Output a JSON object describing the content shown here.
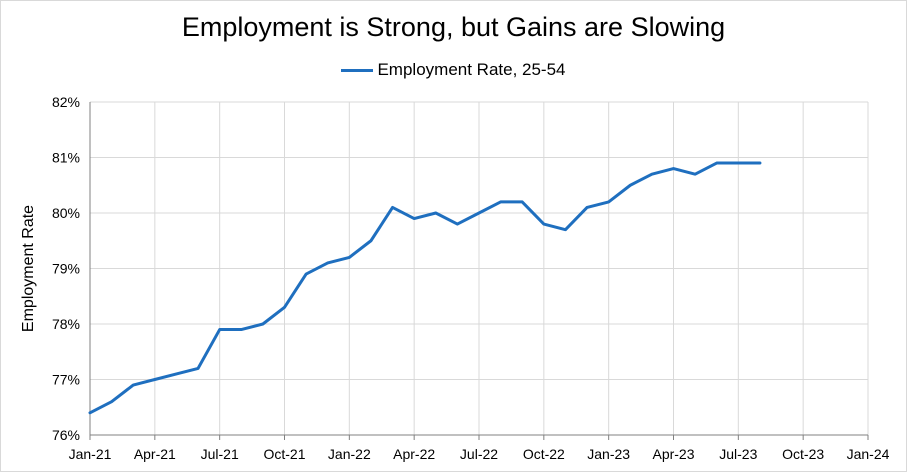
{
  "chart_data": {
    "type": "line",
    "title": "Employment is Strong, but Gains are Slowing",
    "ylabel": "Employment Rate",
    "xlabel": "",
    "legend_position": "top-center",
    "grid": true,
    "ylim": [
      76,
      82
    ],
    "x_tick_labels": [
      "Jan-21",
      "Apr-21",
      "Jul-21",
      "Oct-21",
      "Jan-22",
      "Apr-22",
      "Jul-22",
      "Oct-22",
      "Jan-23",
      "Apr-23",
      "Jul-23",
      "Oct-23",
      "Jan-24"
    ],
    "y_tick_labels": [
      "76%",
      "77%",
      "78%",
      "79%",
      "80%",
      "81%",
      "82%"
    ],
    "x": [
      "Jan-21",
      "Feb-21",
      "Mar-21",
      "Apr-21",
      "May-21",
      "Jun-21",
      "Jul-21",
      "Aug-21",
      "Sep-21",
      "Oct-21",
      "Nov-21",
      "Dec-21",
      "Jan-22",
      "Feb-22",
      "Mar-22",
      "Apr-22",
      "May-22",
      "Jun-22",
      "Jul-22",
      "Aug-22",
      "Sep-22",
      "Oct-22",
      "Nov-22",
      "Dec-22",
      "Jan-23",
      "Feb-23",
      "Mar-23",
      "Apr-23",
      "May-23",
      "Jun-23",
      "Jul-23",
      "Aug-23"
    ],
    "series": [
      {
        "name": "Employment Rate, 25-54",
        "color": "#1f6fbf",
        "values": [
          76.4,
          76.6,
          76.9,
          77.0,
          77.1,
          77.2,
          77.9,
          77.9,
          78.0,
          78.3,
          78.9,
          79.1,
          79.2,
          79.5,
          80.1,
          79.9,
          80.0,
          79.8,
          80.0,
          80.2,
          80.2,
          79.8,
          79.7,
          80.1,
          80.2,
          80.5,
          80.7,
          80.8,
          80.7,
          80.9,
          80.9,
          80.9
        ]
      }
    ]
  }
}
